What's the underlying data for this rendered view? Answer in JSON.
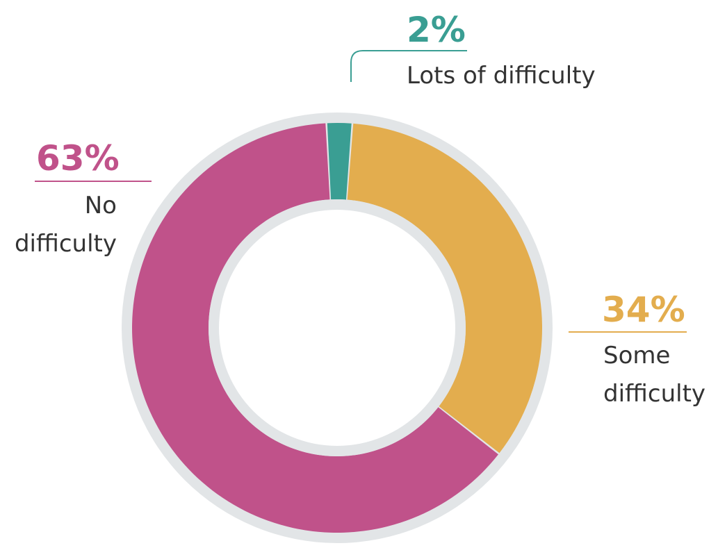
{
  "chart_data": {
    "type": "pie",
    "title": "",
    "slices": [
      {
        "label": "Lots of difficulty",
        "value": 2,
        "value_label": "2%",
        "color": "#3a9e93"
      },
      {
        "label": "Some difficulty",
        "value": 34,
        "value_label": "34%",
        "color": "#e3ad4e"
      },
      {
        "label": "No difficulty",
        "value": 63,
        "value_label": "63%",
        "color": "#c0528a"
      }
    ],
    "legend": "none",
    "style": "donut",
    "ring_color": "#e2e5e7",
    "label_text_color": "#333333"
  }
}
